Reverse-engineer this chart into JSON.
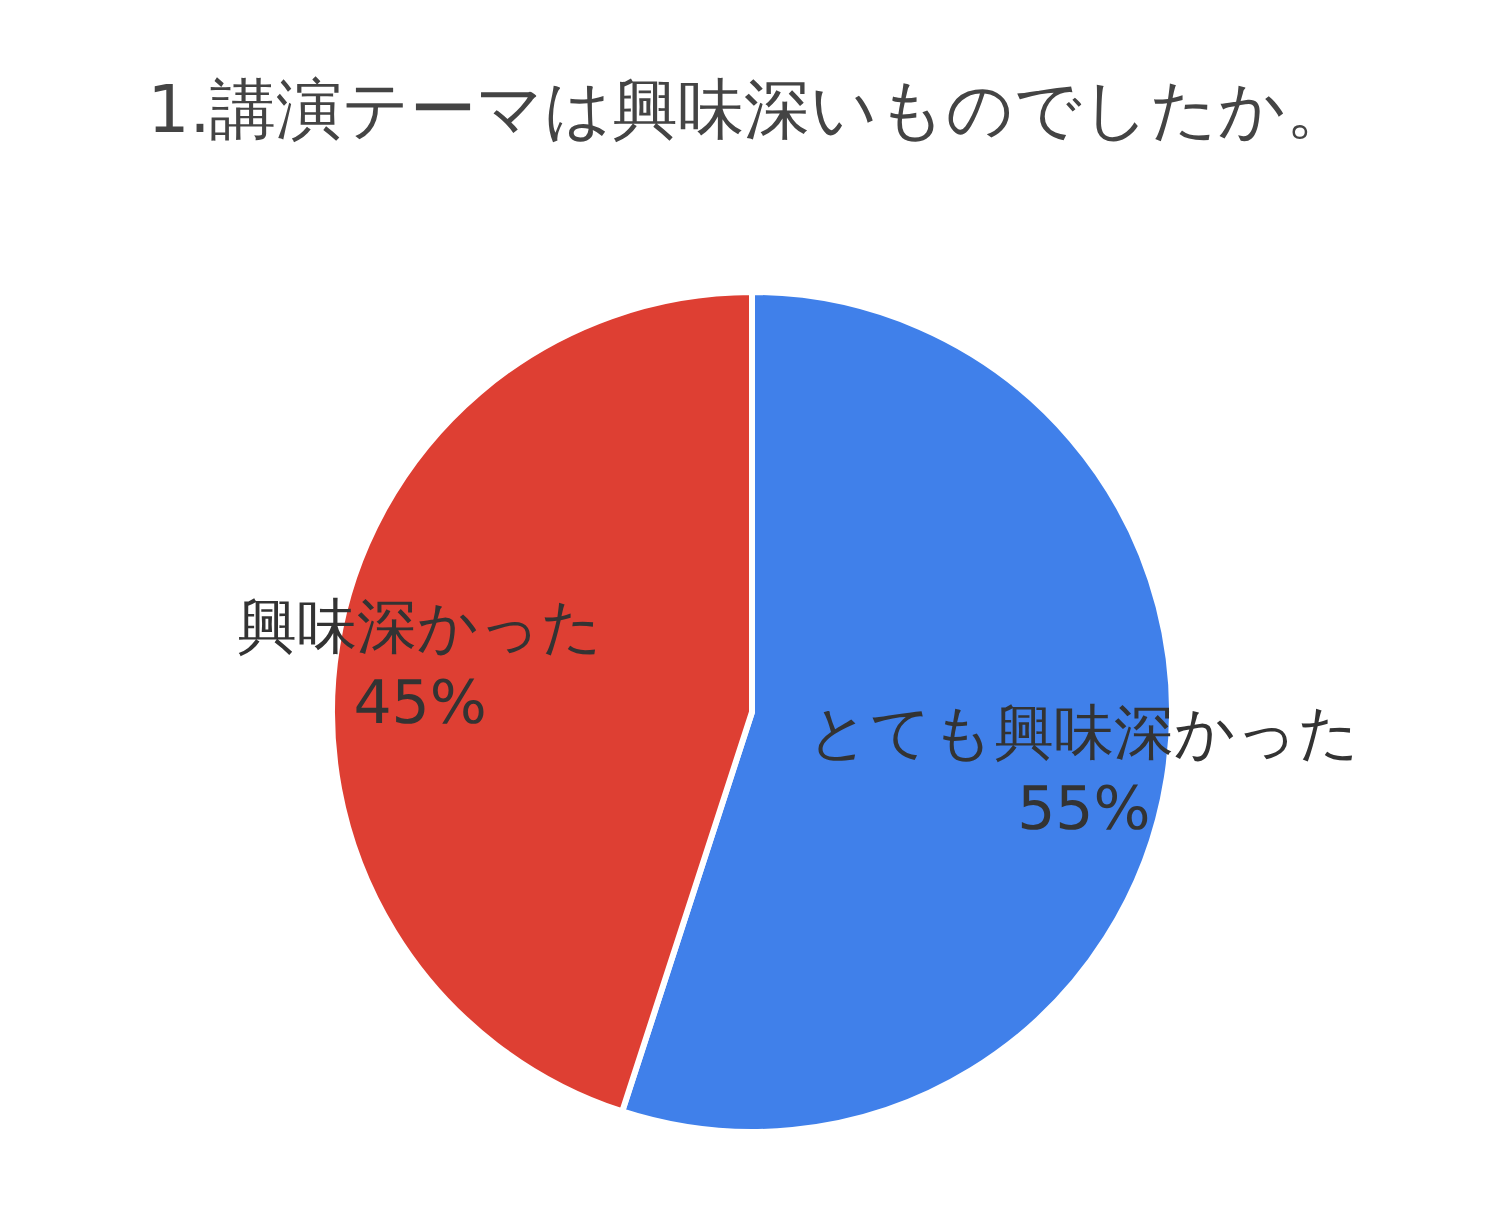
{
  "chart_data": {
    "type": "pie",
    "title": "1.講演テーマは興味深いものでしたか。",
    "categories": [
      "とても興味深かった",
      "興味深かった"
    ],
    "values": [
      55,
      45
    ],
    "colors": [
      "#4080ea",
      "#de3f33"
    ],
    "value_labels": [
      "55%",
      "45%"
    ]
  }
}
